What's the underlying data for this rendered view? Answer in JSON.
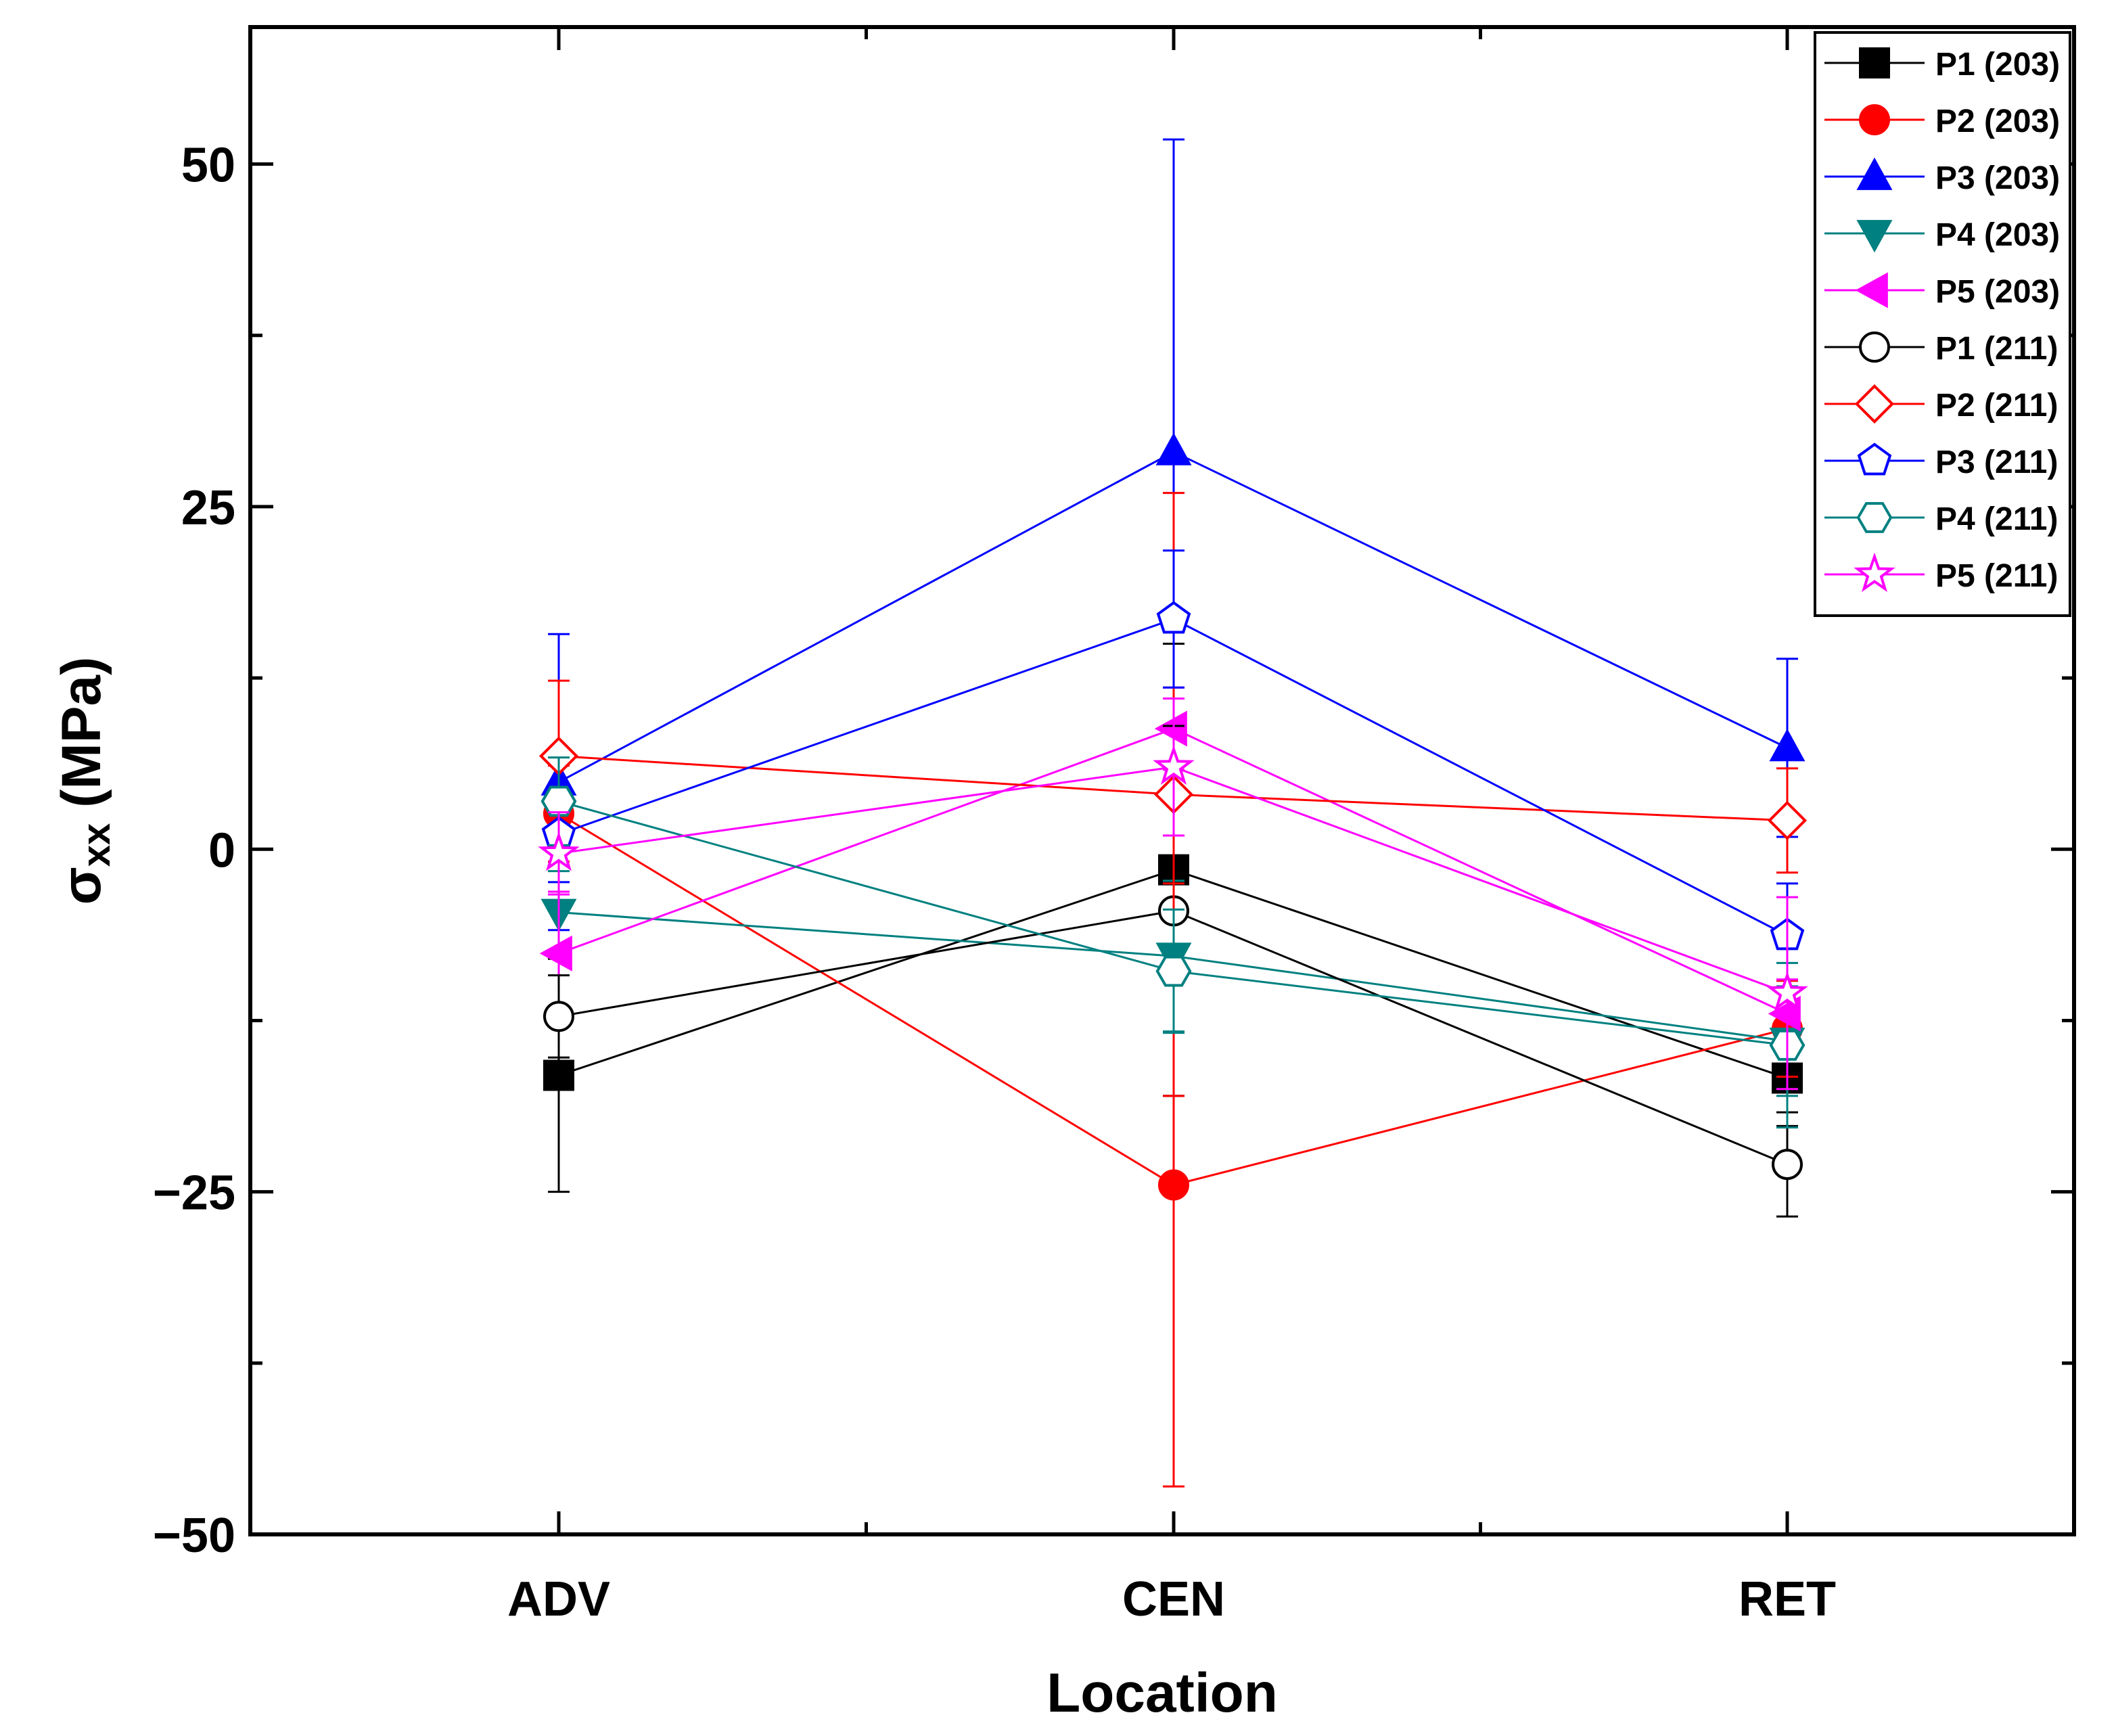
{
  "chart_data": {
    "type": "line",
    "title": "",
    "xlabel": "Location",
    "ylabel_symbol": "σ",
    "ylabel_subscript": "xx",
    "ylabel_unit": " (MPa)",
    "categories": [
      "ADV",
      "CEN",
      "RET"
    ],
    "ylim": [
      -50,
      60
    ],
    "yticks": [
      -50,
      -25,
      0,
      25,
      50
    ],
    "ytick_labels": [
      "−50",
      "−25",
      "0",
      "25",
      "50"
    ],
    "grid": false,
    "legend_position": "top-right",
    "series": [
      {
        "name": "P1 (203)",
        "color": "#000000",
        "marker": "square",
        "filled": true,
        "values": [
          -16.5,
          -1.5,
          -16.7
        ],
        "errors": [
          8.5,
          16.5,
          3.5
        ]
      },
      {
        "name": "P2 (203)",
        "color": "#ff0000",
        "marker": "circle",
        "filled": true,
        "values": [
          2.6,
          -24.5,
          -13.1
        ],
        "errors": [
          3.5,
          22.0,
          3.5
        ]
      },
      {
        "name": "P3 (203)",
        "color": "#0000ff",
        "marker": "triangle-up",
        "filled": true,
        "values": [
          4.9,
          29.0,
          7.4
        ],
        "errors": [
          10.8,
          22.8,
          6.5
        ]
      },
      {
        "name": "P4 (203)",
        "color": "#008080",
        "marker": "triangle-down",
        "filled": true,
        "values": [
          -4.6,
          -7.8,
          -14.0
        ],
        "errors": [
          3.0,
          5.5,
          4.0
        ]
      },
      {
        "name": "P5 (203)",
        "color": "#ff00ff",
        "marker": "triangle-left",
        "filled": true,
        "values": [
          -7.6,
          8.8,
          -12.0
        ],
        "errors": [
          4.5,
          3.0,
          2.5
        ]
      },
      {
        "name": "P1 (211)",
        "color": "#000000",
        "marker": "circle",
        "filled": false,
        "values": [
          -12.2,
          -4.5,
          -23.0
        ],
        "errors": [
          3.0,
          13.5,
          3.8
        ]
      },
      {
        "name": "P2 (211)",
        "color": "#ff0000",
        "marker": "diamond",
        "filled": false,
        "values": [
          6.8,
          4.0,
          2.1
        ],
        "errors": [
          5.5,
          22.0,
          3.8
        ]
      },
      {
        "name": "P3 (211)",
        "color": "#0000ff",
        "marker": "pentagon",
        "filled": false,
        "values": [
          1.1,
          16.8,
          -6.3
        ],
        "errors": [
          3.5,
          5.0,
          3.8
        ]
      },
      {
        "name": "P4 (211)",
        "color": "#008080",
        "marker": "hexagon",
        "filled": false,
        "values": [
          3.5,
          -8.9,
          -14.3
        ],
        "errors": [
          3.2,
          4.5,
          6.0
        ]
      },
      {
        "name": "P5 (211)",
        "color": "#ff00ff",
        "marker": "star",
        "filled": false,
        "values": [
          -0.3,
          6.0,
          -10.5
        ],
        "errors": [
          3.0,
          5.0,
          7.0
        ]
      }
    ]
  }
}
